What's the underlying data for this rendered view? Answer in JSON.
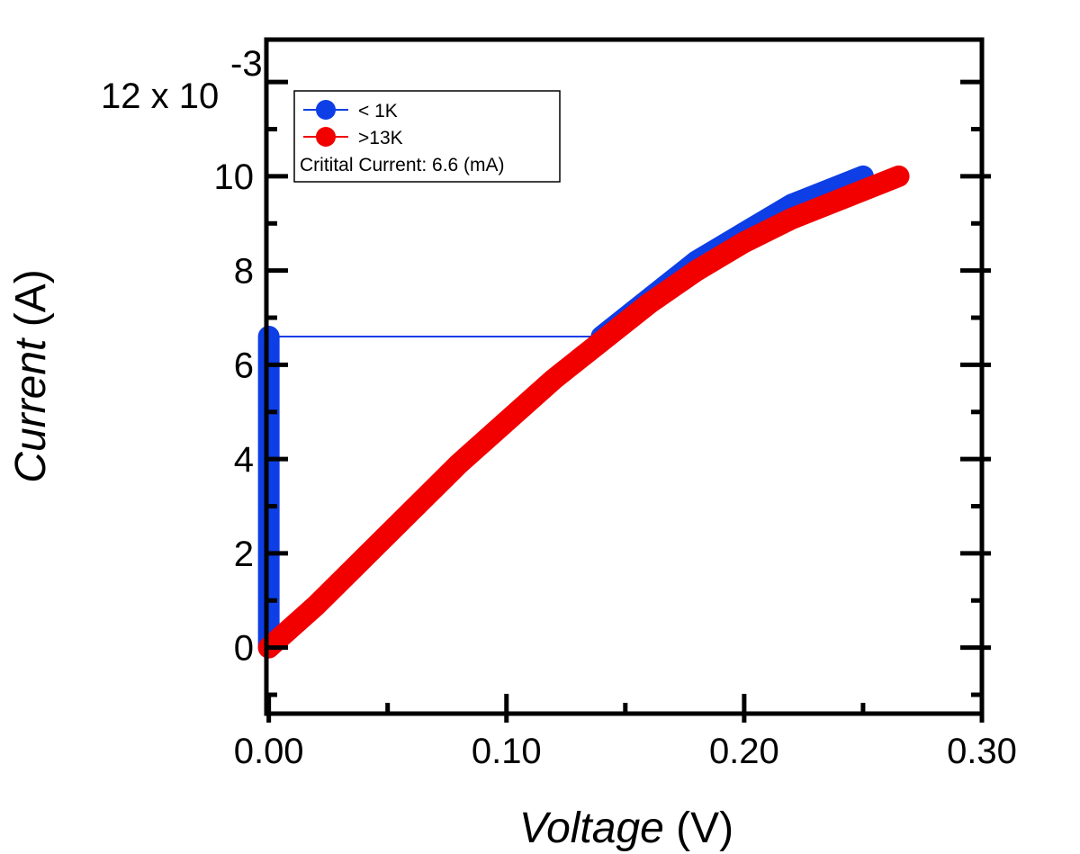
{
  "chart_data": {
    "type": "line",
    "xlabel_italic": "Voltage",
    "xlabel_unit": " (V)",
    "ylabel_italic": "Current",
    "ylabel_unit": " (A)",
    "y_multiplier_base": "12 x 10",
    "y_multiplier_exp": "-3",
    "xlim": [
      -0.001,
      0.3
    ],
    "ylim": [
      -0.0014,
      0.0129
    ],
    "x_ticks": [
      {
        "value": 0.0,
        "label": "0.00"
      },
      {
        "value": 0.1,
        "label": "0.10"
      },
      {
        "value": 0.2,
        "label": "0.20"
      },
      {
        "value": 0.3,
        "label": "0.30"
      }
    ],
    "x_minor_ticks": [
      0.05,
      0.15,
      0.25
    ],
    "y_ticks": [
      {
        "value": 0.0,
        "label": "0"
      },
      {
        "value": 0.002,
        "label": "2"
      },
      {
        "value": 0.004,
        "label": "4"
      },
      {
        "value": 0.006,
        "label": "6"
      },
      {
        "value": 0.008,
        "label": "8"
      },
      {
        "value": 0.01,
        "label": "10"
      }
    ],
    "y_minor_ticks": [
      -0.001,
      0.001,
      0.003,
      0.005,
      0.007,
      0.009,
      0.011,
      0.012
    ],
    "legend_position": "top-left",
    "annotation": "Critital Current: 6.6 (mA)",
    "series": [
      {
        "name": "< 1K",
        "color": "#0d3ee6",
        "segments": [
          {
            "style": "thick",
            "x": [
              0.0,
              0.0
            ],
            "y": [
              0.0,
              0.0066
            ]
          },
          {
            "style": "thin",
            "x": [
              0.0,
              0.14
            ],
            "y": [
              0.0066,
              0.0066
            ]
          },
          {
            "style": "thick",
            "x": [
              0.14,
              0.16,
              0.18,
              0.2,
              0.22,
              0.24,
              0.25
            ],
            "y": [
              0.0066,
              0.0074,
              0.0082,
              0.0088,
              0.0094,
              0.0098,
              0.01
            ]
          }
        ]
      },
      {
        "name": ">13K",
        "color": "#f20000",
        "segments": [
          {
            "style": "thick",
            "x": [
              0.0,
              0.02,
              0.04,
              0.06,
              0.08,
              0.1,
              0.12,
              0.14,
              0.16,
              0.18,
              0.2,
              0.22,
              0.24,
              0.265
            ],
            "y": [
              0.0,
              0.0009,
              0.0019,
              0.0029,
              0.0039,
              0.0048,
              0.0057,
              0.0065,
              0.0073,
              0.008,
              0.0086,
              0.0091,
              0.0095,
              0.01
            ]
          }
        ]
      }
    ]
  }
}
